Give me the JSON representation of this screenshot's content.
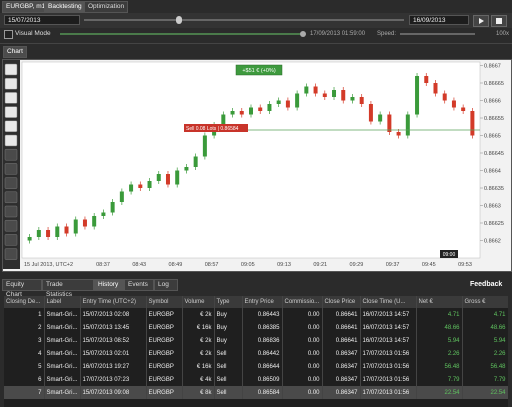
{
  "tabs": [
    "EURGBP, m1",
    "Backtesting",
    "Optimization"
  ],
  "controls": {
    "start_date": "15/07/2013",
    "end_date": "16/09/2013",
    "visual_mode": "Visual Mode",
    "current_time": "17/09/2013 01:59:00",
    "speed_label": "Speed:",
    "speed_value": "100x"
  },
  "chart_tab": "Chart",
  "chart_data": {
    "type": "candlestick",
    "closes": [
      0.8662,
      0.86621,
      0.86623,
      0.86621,
      0.86624,
      0.86622,
      0.86626,
      0.86624,
      0.86627,
      0.86628,
      0.86631,
      0.86634,
      0.86636,
      0.86635,
      0.86637,
      0.86639,
      0.86636,
      0.8664,
      0.86641,
      0.86644,
      0.8665,
      0.86653,
      0.86656,
      0.86657,
      0.86656,
      0.86658,
      0.86657,
      0.86659,
      0.8666,
      0.86658,
      0.86662,
      0.86664,
      0.86662,
      0.86661,
      0.86663,
      0.8666,
      0.86661,
      0.86659,
      0.86654,
      0.86656,
      0.86651,
      0.8665,
      0.86656,
      0.86667,
      0.86665,
      0.86662,
      0.8666,
      0.86658,
      0.86657,
      0.8665
    ],
    "ylim": [
      0.86615,
      0.86671
    ],
    "yticks": [
      0.8667,
      0.86665,
      0.8666,
      0.86655,
      0.8665,
      0.86645,
      0.8664,
      0.86635,
      0.8663,
      0.86625,
      0.8662
    ],
    "x_labels": [
      "15 Jul 2013, UTC+2",
      "08:37",
      "08:43",
      "08:49",
      "08:57",
      "09:05",
      "09:13",
      "09:21",
      "09:29",
      "09:37",
      "09:45",
      "09:53"
    ],
    "annotations": {
      "profit": "+$51 € (+0%)",
      "position": "Sell 0.08 Lots | 0.86584",
      "cursor_time": "09:00"
    }
  },
  "bottom_tabs": [
    "Equity Chart",
    "Trade Statistics",
    "History",
    "Events",
    "Log"
  ],
  "feedback": "Feedback",
  "table": {
    "columns": [
      "Closing De...",
      "Label",
      "Entry Time (UTC+2)",
      "Symbol",
      "Volume",
      "Type",
      "Entry Price",
      "Commissio...",
      "Close Price",
      "Close Time (U...",
      "Net €",
      "Gross €"
    ],
    "rows": [
      [
        "1",
        "Smart-Gri...",
        "15/07/2013 02:08",
        "EURGBP",
        "€ 2k",
        "Buy",
        "0.86443",
        "0.00",
        "0.86641",
        "16/07/2013 14:57",
        "4.71",
        "4.71"
      ],
      [
        "2",
        "Smart-Gri...",
        "15/07/2013 13:45",
        "EURGBP",
        "€ 16k",
        "Buy",
        "0.86385",
        "0.00",
        "0.86641",
        "16/07/2013 14:57",
        "48.66",
        "48.66"
      ],
      [
        "3",
        "Smart-Gri...",
        "15/07/2013 08:52",
        "EURGBP",
        "€ 2k",
        "Buy",
        "0.86836",
        "0.00",
        "0.86641",
        "16/07/2013 14:57",
        "5.94",
        "5.94"
      ],
      [
        "4",
        "Smart-Gri...",
        "15/07/2013 02:01",
        "EURGBP",
        "€ 2k",
        "Sell",
        "0.86442",
        "0.00",
        "0.86347",
        "17/07/2013 01:56",
        "2.26",
        "2.26"
      ],
      [
        "5",
        "Smart-Gri...",
        "16/07/2013 19:27",
        "EURGBP",
        "€ 16k",
        "Sell",
        "0.86644",
        "0.00",
        "0.86347",
        "17/07/2013 01:56",
        "56.48",
        "56.48"
      ],
      [
        "6",
        "Smart-Gri...",
        "17/07/2013 07:23",
        "EURGBP",
        "€ 4k",
        "Sell",
        "0.86509",
        "0.00",
        "0.86347",
        "17/07/2013 01:56",
        "7.79",
        "7.79"
      ],
      [
        "7",
        "Smart-Gri...",
        "15/07/2013 09:08",
        "EURGBP",
        "€ 8k",
        "Sell",
        "0.86584",
        "0.00",
        "0.86347",
        "17/07/2013 01:56",
        "22.54",
        "22.54"
      ]
    ]
  }
}
